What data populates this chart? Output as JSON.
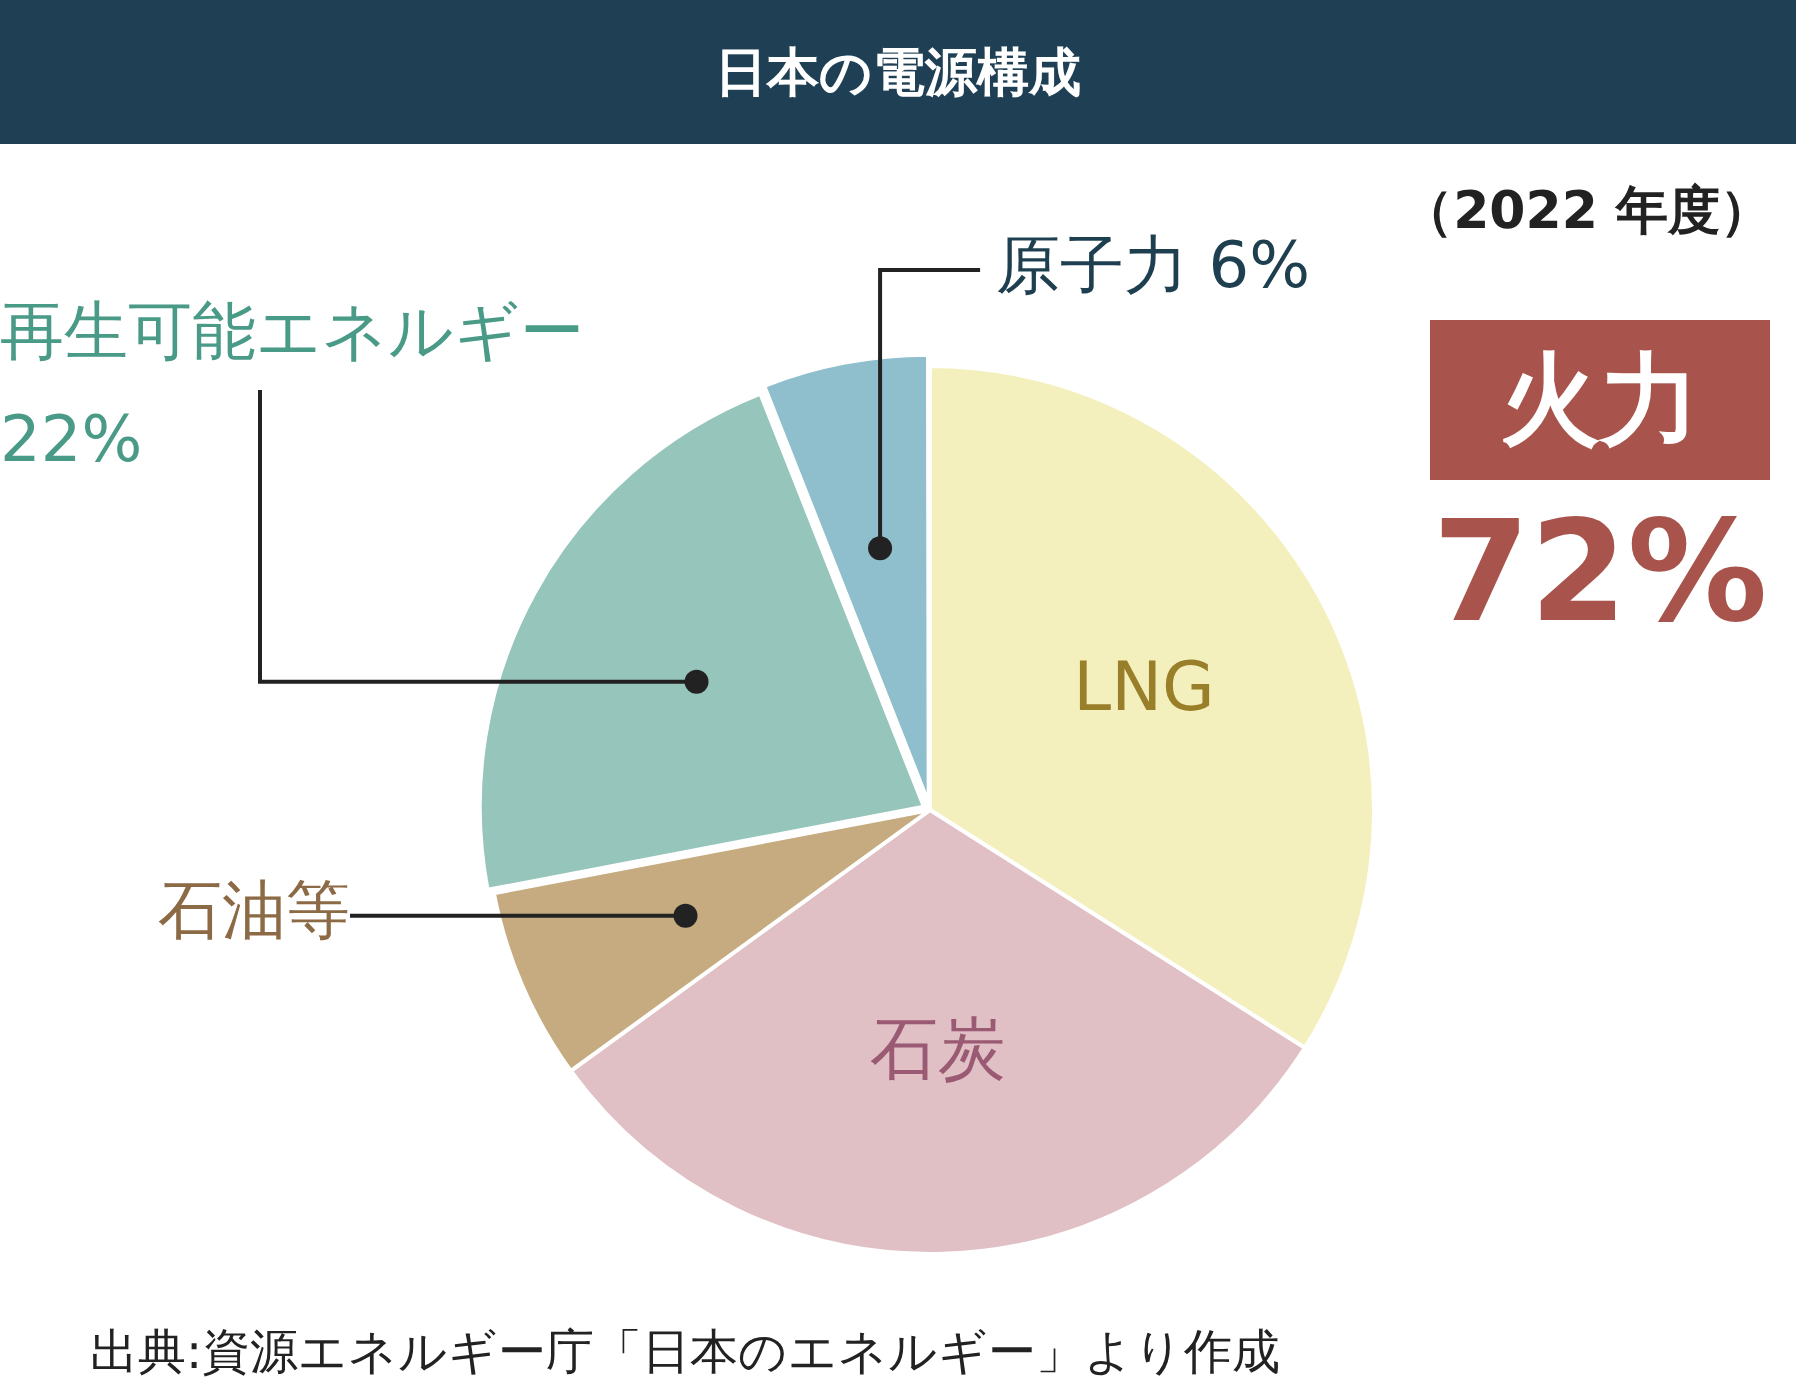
{
  "chart_data": {
    "type": "pie",
    "title": "日本の電源構成",
    "subtitle": "（2022 年度）",
    "categories": [
      "LNG",
      "石炭",
      "石油等",
      "再生可能エネルギー",
      "原子力"
    ],
    "values": [
      34,
      31,
      7,
      22,
      6
    ],
    "colors": [
      "#f3f0bd",
      "#e0c0c5",
      "#c5ab7f",
      "#96c5bb",
      "#8fbfcc"
    ],
    "value_labels": [
      null,
      null,
      null,
      "22%",
      "6%"
    ],
    "annotations": [
      "火力",
      "72%",
      "出典:資源エネルギー庁「日本のエネルギー」より作成"
    ],
    "legend": false
  }
}
